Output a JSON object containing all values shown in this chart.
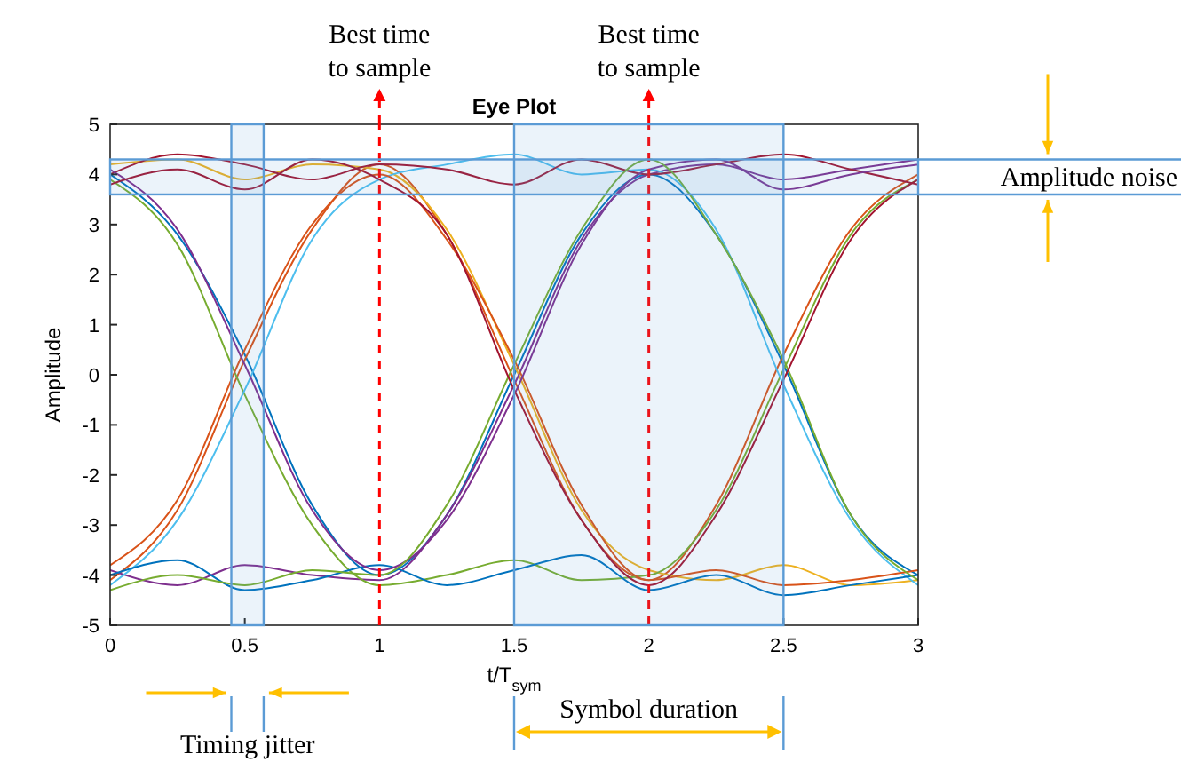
{
  "chart_data": {
    "type": "line",
    "title": "Eye Plot",
    "xlabel": "t/T$_{sym}$",
    "ylabel": "Amplitude",
    "x": [
      0,
      0.25,
      0.5,
      0.75,
      1,
      1.25,
      1.5,
      1.75,
      2,
      2.25,
      2.5,
      2.75,
      3
    ],
    "xlim": [
      0,
      3
    ],
    "xticks": [
      0,
      0.5,
      1,
      1.5,
      2,
      2.5,
      3
    ],
    "ylim": [
      -5,
      5
    ],
    "yticks": [
      -5,
      -4,
      -3,
      -2,
      -1,
      0,
      1,
      2,
      3,
      4,
      5
    ],
    "grid": false,
    "marker": "none",
    "line_style": "solid",
    "series": [
      {
        "color": "#0072bd",
        "values": [
          4,
          2.8,
          0.4,
          -2.6,
          -4,
          -2.8,
          0,
          2.8,
          4,
          2.8,
          0.2,
          -2.8,
          -4
        ]
      },
      {
        "color": "#d95319",
        "values": [
          -4.1,
          -2.7,
          0.3,
          2.9,
          4.2,
          2.8,
          -0.1,
          -2.9,
          -4.1,
          -2.6,
          0.4,
          2.9,
          4
        ]
      },
      {
        "color": "#edb120",
        "values": [
          4.2,
          4.3,
          3.9,
          4.2,
          4.1,
          2.9,
          0.2,
          -2.7,
          -3.9,
          -4.1,
          -3.8,
          -4.2,
          -4.1
        ]
      },
      {
        "color": "#7e2f8e",
        "values": [
          -3.9,
          -4.2,
          -3.8,
          -4,
          -4.1,
          -2.8,
          -0.2,
          2.7,
          4,
          4.2,
          3.9,
          4.1,
          4.3
        ]
      },
      {
        "color": "#77ac30",
        "values": [
          3.9,
          2.6,
          -0.4,
          -3,
          -4.2,
          -4,
          -3.7,
          -4.1,
          -4,
          -2.7,
          0.1,
          2.8,
          3.9
        ]
      },
      {
        "color": "#4dbeee",
        "values": [
          -4.2,
          -2.9,
          -0.3,
          2.7,
          3.9,
          4.2,
          4.4,
          4,
          4.1,
          2.9,
          -0.2,
          -2.9,
          -4.2
        ]
      },
      {
        "color": "#a2142f",
        "values": [
          4,
          4.4,
          4.2,
          3.9,
          4.2,
          4.1,
          3.8,
          4.3,
          4,
          4.2,
          4.4,
          4.1,
          3.8
        ]
      },
      {
        "color": "#0072bd",
        "values": [
          -4,
          -3.7,
          -4.3,
          -4.1,
          -3.8,
          -4.2,
          -3.9,
          -3.6,
          -4.3,
          -4,
          -4.4,
          -4.2,
          -4
        ]
      },
      {
        "color": "#d95319",
        "values": [
          -3.8,
          -2.5,
          0.5,
          3,
          4,
          2.7,
          0.3,
          -2.6,
          -4.1,
          -3.9,
          -4.2,
          -4.1,
          -3.9
        ]
      },
      {
        "color": "#7e2f8e",
        "values": [
          4.1,
          2.9,
          0.2,
          -2.7,
          -3.9,
          -2.9,
          -0.4,
          2.6,
          4.1,
          4.3,
          3.7,
          4,
          4.2
        ]
      },
      {
        "color": "#77ac30",
        "values": [
          -4.3,
          -4,
          -4.2,
          -3.9,
          -4,
          -2.6,
          0.2,
          2.9,
          4.3,
          2.8,
          0.3,
          -2.8,
          -4.1
        ]
      },
      {
        "color": "#a2142f",
        "values": [
          3.8,
          4.1,
          3.7,
          4.3,
          3.9,
          2.8,
          -0.3,
          -2.9,
          -4.2,
          -2.8,
          -0.1,
          2.7,
          3.9
        ]
      }
    ],
    "ref_lines": [
      {
        "axis": "x",
        "value": 1,
        "label": "Best time to sample",
        "color": "#ff0000",
        "line_style": "dashed"
      },
      {
        "axis": "x",
        "value": 2,
        "label": "Best time to sample",
        "color": "#ff0000",
        "line_style": "dashed"
      }
    ],
    "bands": [
      {
        "axis": "x",
        "from": 0.45,
        "to": 0.57,
        "label": "Timing jitter",
        "color": "#5b9bd5"
      },
      {
        "axis": "x",
        "from": 1.5,
        "to": 2.5,
        "label": "Symbol duration",
        "color": "#5b9bd5"
      },
      {
        "axis": "y",
        "from": 3.6,
        "to": 4.3,
        "label": "Amplitude noise",
        "color": "#5b9bd5"
      }
    ]
  }
}
